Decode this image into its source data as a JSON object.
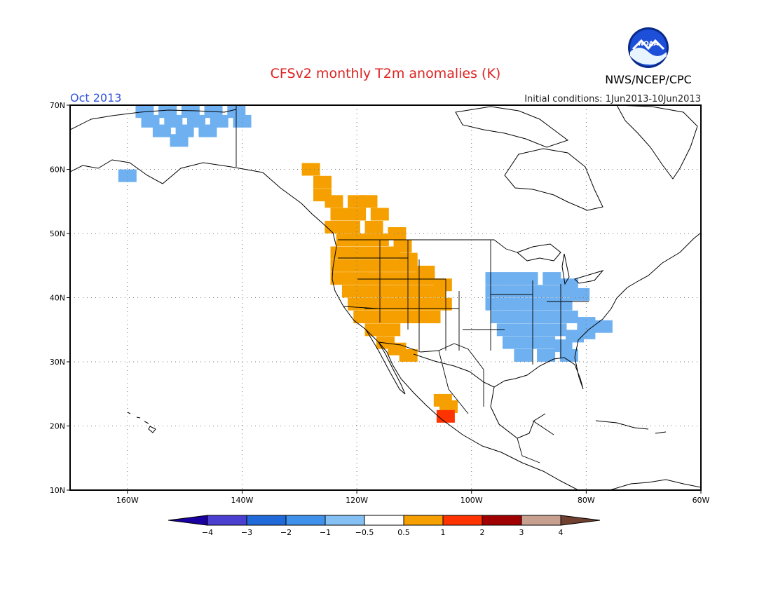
{
  "title": "CFSv2 monthly T2m anomalies (K)",
  "month": "Oct 2013",
  "agency": "NWS/NCEP/CPC",
  "logo_text": "NOAA",
  "initial_conditions": "Initial conditions:  1Jun2013-10Jun2013",
  "map": {
    "lon_range": [
      -170,
      -60
    ],
    "lat_range": [
      10,
      70
    ],
    "lat_ticks": [
      {
        "value": 70,
        "label": "70N"
      },
      {
        "value": 60,
        "label": "60N"
      },
      {
        "value": 50,
        "label": "50N"
      },
      {
        "value": 40,
        "label": "40N"
      },
      {
        "value": 30,
        "label": "30N"
      },
      {
        "value": 20,
        "label": "20N"
      },
      {
        "value": 10,
        "label": "10N"
      }
    ],
    "lon_ticks": [
      {
        "value": -160,
        "label": "160W"
      },
      {
        "value": -140,
        "label": "140W"
      },
      {
        "value": -120,
        "label": "120W"
      },
      {
        "value": -100,
        "label": "100W"
      },
      {
        "value": -80,
        "label": "80W"
      },
      {
        "value": -60,
        "label": "60W"
      }
    ],
    "anomaly_regions": [
      {
        "name": "Alaska north slope",
        "category": "-1 to -0.5",
        "color": "#6eb0f0",
        "cells": [
          [
            -157,
            69
          ],
          [
            -153,
            69
          ],
          [
            -149,
            69
          ],
          [
            -145,
            69
          ],
          [
            -141,
            69
          ],
          [
            -156,
            67.5
          ],
          [
            -152,
            67.5
          ],
          [
            -148,
            67.5
          ],
          [
            -144,
            67.5
          ],
          [
            -140,
            67.5
          ],
          [
            -154,
            66
          ],
          [
            -150,
            66
          ],
          [
            -146,
            66
          ],
          [
            -151,
            64.5
          ],
          [
            -160,
            59
          ]
        ]
      },
      {
        "name": "Western North America",
        "category": "0.5 to 1",
        "color": "#f5a000",
        "cells": [
          [
            -128,
            60
          ],
          [
            -126,
            58
          ],
          [
            -126,
            56
          ],
          [
            -124,
            55
          ],
          [
            -120,
            55
          ],
          [
            -118,
            55
          ],
          [
            -123,
            53
          ],
          [
            -120,
            53
          ],
          [
            -116,
            53
          ],
          [
            -124,
            51
          ],
          [
            -121,
            51
          ],
          [
            -117,
            51
          ],
          [
            -113,
            50
          ],
          [
            -122,
            49
          ],
          [
            -119,
            49
          ],
          [
            -116,
            49
          ],
          [
            -112,
            48
          ],
          [
            -123,
            47
          ],
          [
            -120,
            47
          ],
          [
            -117,
            47
          ],
          [
            -114,
            47
          ],
          [
            -111,
            46
          ],
          [
            -123,
            45
          ],
          [
            -120,
            45
          ],
          [
            -117,
            45
          ],
          [
            -114,
            45
          ],
          [
            -111,
            45
          ],
          [
            -108,
            44
          ],
          [
            -123,
            43
          ],
          [
            -120,
            43
          ],
          [
            -117,
            43
          ],
          [
            -114,
            43
          ],
          [
            -111,
            43
          ],
          [
            -108,
            43
          ],
          [
            -105,
            42
          ],
          [
            -121,
            41
          ],
          [
            -118,
            41
          ],
          [
            -115,
            41
          ],
          [
            -112,
            41
          ],
          [
            -109,
            41
          ],
          [
            -106,
            41
          ],
          [
            -120,
            39
          ],
          [
            -117,
            39
          ],
          [
            -114,
            39
          ],
          [
            -111,
            39
          ],
          [
            -108,
            39
          ],
          [
            -105,
            39
          ],
          [
            -119,
            37
          ],
          [
            -116,
            37
          ],
          [
            -113,
            37
          ],
          [
            -110,
            37
          ],
          [
            -107,
            37
          ],
          [
            -117,
            35
          ],
          [
            -114,
            35
          ],
          [
            -115,
            33
          ],
          [
            -113,
            32
          ],
          [
            -111,
            31
          ],
          [
            -105,
            24
          ],
          [
            -104,
            23
          ]
        ]
      },
      {
        "name": "Eastern United States",
        "category": "-1 to -0.5",
        "color": "#6eb0f0",
        "cells": [
          [
            -96,
            43
          ],
          [
            -93,
            43
          ],
          [
            -90,
            43
          ],
          [
            -86,
            43
          ],
          [
            -83,
            42
          ],
          [
            -96,
            41
          ],
          [
            -93,
            41
          ],
          [
            -90,
            41
          ],
          [
            -87,
            41
          ],
          [
            -84,
            41
          ],
          [
            -81,
            40.5
          ],
          [
            -96,
            39
          ],
          [
            -93,
            39
          ],
          [
            -90,
            39
          ],
          [
            -87,
            39
          ],
          [
            -84,
            39
          ],
          [
            -95,
            37
          ],
          [
            -92,
            37
          ],
          [
            -89,
            37
          ],
          [
            -86,
            37
          ],
          [
            -83,
            37
          ],
          [
            -80,
            36
          ],
          [
            -77,
            35.5
          ],
          [
            -94,
            35
          ],
          [
            -91,
            35
          ],
          [
            -88,
            35
          ],
          [
            -85,
            35
          ],
          [
            -82,
            34
          ],
          [
            -93,
            33
          ],
          [
            -90,
            33
          ],
          [
            -87,
            33
          ],
          [
            -84,
            32.5
          ],
          [
            -80,
            34.5
          ],
          [
            -91,
            31
          ],
          [
            -87,
            31
          ],
          [
            -83,
            31
          ]
        ]
      },
      {
        "name": "Western Mexico coast",
        "category": "1 to 2",
        "color": "#ff3300",
        "cells": [
          [
            -104.5,
            21.5
          ]
        ]
      }
    ]
  },
  "legend": {
    "colors": [
      "#1a00a0",
      "#4a3fd0",
      "#1f6ad8",
      "#3f91ec",
      "#84c0f4",
      "#ffffff",
      "#f5a000",
      "#ff3300",
      "#a00000",
      "#c8a090",
      "#704030"
    ],
    "labels": [
      "-4",
      "-3",
      "-2",
      "-1",
      "-0.5",
      "0.5",
      "1",
      "2",
      "3",
      "4"
    ]
  }
}
